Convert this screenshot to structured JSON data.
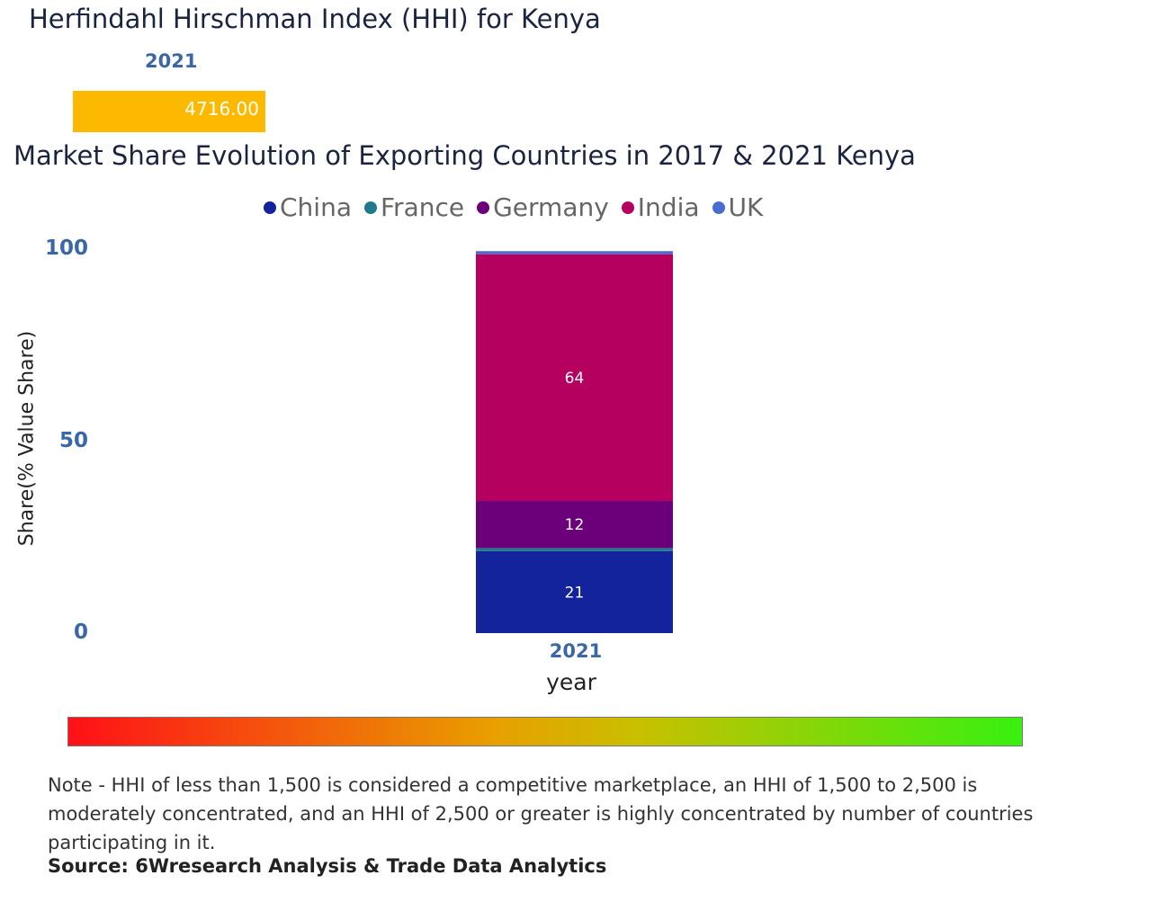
{
  "hhi": {
    "title": "Herfindahl Hirschman Index (HHI) for Kenya",
    "year": "2021",
    "value": "4716.00",
    "color": "#fdb900"
  },
  "chart_data": {
    "type": "bar",
    "stacked": true,
    "title": "Market Share Evolution of Exporting Countries in 2017 & 2021 Kenya",
    "categories": [
      "2021"
    ],
    "series": [
      {
        "name": "China",
        "values": [
          21.4
        ],
        "color": "#13239c"
      },
      {
        "name": "France",
        "values": [
          0.8
        ],
        "color": "#1f7a8c"
      },
      {
        "name": "Germany",
        "values": [
          12.3
        ],
        "color": "#6b007a"
      },
      {
        "name": "India",
        "values": [
          64.4
        ],
        "color": "#b5005f"
      },
      {
        "name": "UK",
        "values": [
          0.8
        ],
        "color": "#4a6ccc"
      }
    ],
    "xlabel": "year",
    "ylabel": "Share(% Value Share)",
    "ylim": [
      0,
      100
    ],
    "yticks": [
      "0",
      "50",
      "100"
    ],
    "legend": "top"
  },
  "note": "Note - HHI of less than 1,500 is considered a competitive marketplace, an HHI of 1,500 to 2,500 is moderately concentrated, and an HHI of 2,500 or greater is highly concentrated by number of countries participating in it.",
  "source": "Source: 6Wresearch Analysis & Trade Data Analytics"
}
